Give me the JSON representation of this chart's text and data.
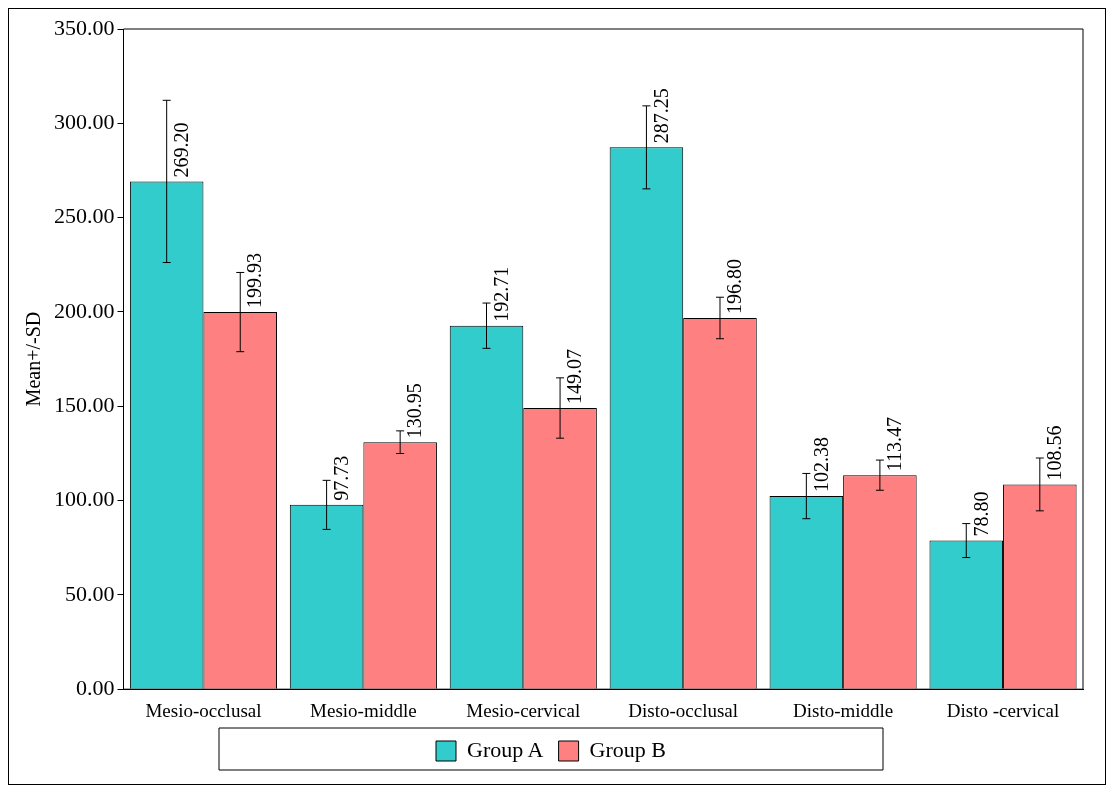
{
  "chart_data": {
    "type": "bar",
    "ylabel": "Mean+/-SD",
    "categories": [
      "Mesio-occlusal",
      "Mesio-middle",
      "Mesio-cervical",
      "Disto-occlusal",
      "Disto-middle",
      "Disto -cervical"
    ],
    "series": [
      {
        "name": "Group A",
        "color": "#33cccc",
        "values": [
          269.2,
          97.73,
          192.71,
          287.25,
          102.38,
          78.8
        ],
        "errors": [
          43,
          13,
          12,
          22,
          12,
          9
        ],
        "value_labels": [
          "269.20",
          "97.73",
          "192.71",
          "287.25",
          "102.38",
          "78.80"
        ]
      },
      {
        "name": "Group B",
        "color": "#ff8080",
        "values": [
          199.93,
          130.95,
          149.07,
          196.8,
          113.47,
          108.56
        ],
        "errors": [
          21,
          6,
          16,
          11,
          8,
          14
        ],
        "value_labels": [
          "199.93",
          "130.95",
          "149.07",
          "196.80",
          "113.47",
          "108.56"
        ]
      }
    ],
    "ylim": [
      0,
      350
    ],
    "yticks": [
      {
        "value": 0,
        "label": "0.00"
      },
      {
        "value": 50,
        "label": "50.00"
      },
      {
        "value": 100,
        "label": "100.00"
      },
      {
        "value": 150,
        "label": "150.00"
      },
      {
        "value": 200,
        "label": "200.00"
      },
      {
        "value": 250,
        "label": "250.00"
      },
      {
        "value": 300,
        "label": "300.00"
      },
      {
        "value": 350,
        "label": "350.00"
      }
    ],
    "grid": false,
    "legend": "bottom"
  }
}
